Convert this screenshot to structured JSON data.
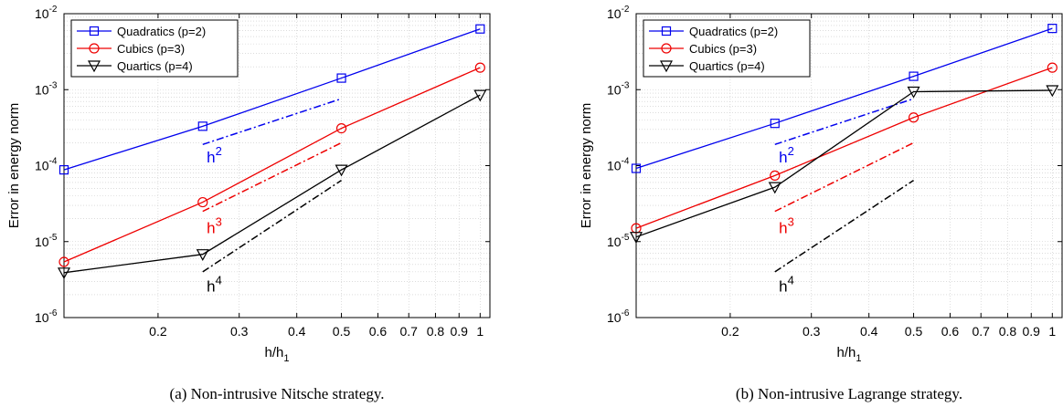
{
  "chart_data": [
    {
      "type": "line",
      "caption": "(a)  Non-intrusive Nitsche strategy.",
      "xlabel": "h/h",
      "xlabel_sub": "1",
      "ylabel": "Error in energy norm",
      "xscale": "log",
      "yscale": "log",
      "xlim": [
        0.125,
        1.05
      ],
      "ylim": [
        1e-06,
        0.01
      ],
      "grid": true,
      "legend_position": "top-left",
      "x_ticks": [
        0.2,
        0.3,
        0.4,
        0.5,
        0.6,
        0.7,
        0.8,
        0.9,
        1
      ],
      "x_tick_labels": [
        "0.2",
        "0.3",
        "0.4",
        "0.5",
        "0.6",
        "0.7",
        "0.8",
        "0.9",
        "1"
      ],
      "y_ticks": [
        1e-06,
        1e-05,
        0.0001,
        0.001,
        0.01
      ],
      "y_tick_labels": [
        {
          "b": "10",
          "e": "-6"
        },
        {
          "b": "10",
          "e": "-5"
        },
        {
          "b": "10",
          "e": "-4"
        },
        {
          "b": "10",
          "e": "-3"
        },
        {
          "b": "10",
          "e": "-2"
        }
      ],
      "series": [
        {
          "name": "Quadratics (p=2)",
          "color": "#0000ee",
          "marker": "square",
          "x": [
            0.125,
            0.25,
            0.5,
            1
          ],
          "y": [
            8.8e-05,
            0.00033,
            0.00142,
            0.0063
          ]
        },
        {
          "name": "Cubics (p=3)",
          "color": "#ee0000",
          "marker": "circle",
          "x": [
            0.125,
            0.25,
            0.5,
            1
          ],
          "y": [
            5.4e-06,
            3.3e-05,
            0.00031,
            0.00195
          ]
        },
        {
          "name": "Quartics (p=4)",
          "color": "#000000",
          "marker": "triangle-down",
          "x": [
            0.125,
            0.25,
            0.5,
            1
          ],
          "y": [
            3.9e-06,
            6.8e-06,
            8.8e-05,
            0.00085
          ]
        }
      ],
      "reference_slopes": [
        {
          "label": "h",
          "power": "2",
          "color": "#0000ee",
          "x": [
            0.25,
            0.5
          ],
          "y": [
            0.00019,
            0.00076
          ],
          "label_x": 0.255,
          "label_y": 0.00011
        },
        {
          "label": "h",
          "power": "3",
          "color": "#ee0000",
          "x": [
            0.25,
            0.5
          ],
          "y": [
            2.5e-05,
            0.0002
          ],
          "label_x": 0.255,
          "label_y": 1.3e-05
        },
        {
          "label": "h",
          "power": "4",
          "color": "#000000",
          "x": [
            0.25,
            0.5
          ],
          "y": [
            4e-06,
            6.4e-05
          ],
          "label_x": 0.255,
          "label_y": 2.2e-06
        }
      ]
    },
    {
      "type": "line",
      "caption": "(b)  Non-intrusive Lagrange strategy.",
      "xlabel": "h/h",
      "xlabel_sub": "1",
      "ylabel": "Error in energy norm",
      "xscale": "log",
      "yscale": "log",
      "xlim": [
        0.125,
        1.05
      ],
      "ylim": [
        1e-06,
        0.01
      ],
      "grid": true,
      "legend_position": "top-left",
      "x_ticks": [
        0.2,
        0.3,
        0.4,
        0.5,
        0.6,
        0.7,
        0.8,
        0.9,
        1
      ],
      "x_tick_labels": [
        "0.2",
        "0.3",
        "0.4",
        "0.5",
        "0.6",
        "0.7",
        "0.8",
        "0.9",
        "1"
      ],
      "y_ticks": [
        1e-06,
        1e-05,
        0.0001,
        0.001,
        0.01
      ],
      "y_tick_labels": [
        {
          "b": "10",
          "e": "-6"
        },
        {
          "b": "10",
          "e": "-5"
        },
        {
          "b": "10",
          "e": "-4"
        },
        {
          "b": "10",
          "e": "-3"
        },
        {
          "b": "10",
          "e": "-2"
        }
      ],
      "series": [
        {
          "name": "Quadratics (p=2)",
          "color": "#0000ee",
          "marker": "square",
          "x": [
            0.125,
            0.25,
            0.5,
            1
          ],
          "y": [
            9.2e-05,
            0.00036,
            0.0015,
            0.0064
          ]
        },
        {
          "name": "Cubics (p=3)",
          "color": "#ee0000",
          "marker": "circle",
          "x": [
            0.125,
            0.25,
            0.5,
            1
          ],
          "y": [
            1.5e-05,
            7.4e-05,
            0.00043,
            0.00195
          ]
        },
        {
          "name": "Quartics (p=4)",
          "color": "#000000",
          "marker": "triangle-down",
          "x": [
            0.125,
            0.25,
            0.5,
            1
          ],
          "y": [
            1.15e-05,
            5.2e-05,
            0.00094,
            0.00098
          ]
        }
      ],
      "reference_slopes": [
        {
          "label": "h",
          "power": "2",
          "color": "#0000ee",
          "x": [
            0.25,
            0.5
          ],
          "y": [
            0.00019,
            0.00076
          ],
          "label_x": 0.255,
          "label_y": 0.00011
        },
        {
          "label": "h",
          "power": "3",
          "color": "#ee0000",
          "x": [
            0.25,
            0.5
          ],
          "y": [
            2.5e-05,
            0.0002
          ],
          "label_x": 0.255,
          "label_y": 1.3e-05
        },
        {
          "label": "h",
          "power": "4",
          "color": "#000000",
          "x": [
            0.25,
            0.5
          ],
          "y": [
            4e-06,
            6.4e-05
          ],
          "label_x": 0.255,
          "label_y": 2.2e-06
        }
      ]
    }
  ]
}
